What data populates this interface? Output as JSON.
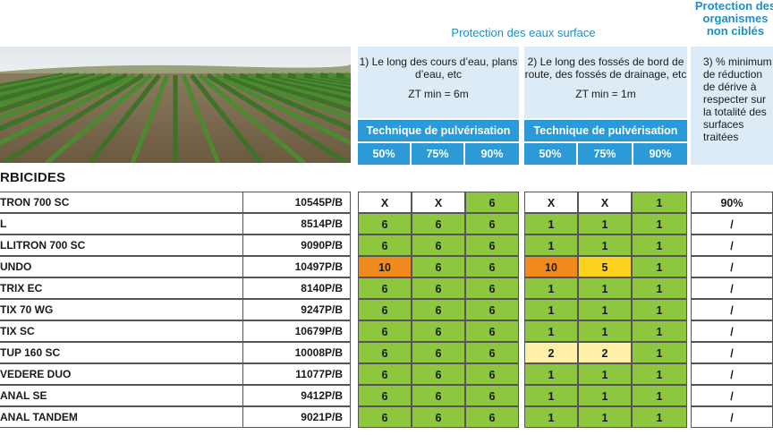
{
  "colors": {
    "header_blue": "#2b9ad6",
    "header_light": "#dcebf6",
    "title_blue": "#1f8fc9",
    "green": "#8dc63f",
    "orange": "#f08a1c",
    "yellow": "#ffd21f",
    "pale_yellow": "#fff2a8"
  },
  "headers": {
    "eaux_title": "Protection des eaux surface",
    "orga_title": "Protection des organismes non ciblés",
    "col1": {
      "text": "1) Le long des cours d’eau, plans d’eau, etc",
      "zt": "ZT min = 6m",
      "tech": "Technique de pulvérisation"
    },
    "col2": {
      "text": "2) Le long des fossés de bord de route, des fossés de drainage, etc",
      "zt": "ZT min = 1m",
      "tech": "Technique de pulvérisation"
    },
    "col3": {
      "text": "3) % minimum de réduction de dérive à respecter sur la totalité des surfaces traitées"
    },
    "percents": [
      "50%",
      "75%",
      "90%",
      "50%",
      "75%",
      "90%"
    ]
  },
  "section_title": "RBICIDES",
  "rows": [
    {
      "name": "TRON 700 SC",
      "amm": "10545P/B",
      "c1": [
        "X",
        "X",
        "6"
      ],
      "c2": [
        "X",
        "X",
        "1"
      ],
      "orga": "90%"
    },
    {
      "name": "L",
      "amm": "8514P/B",
      "c1": [
        "6",
        "6",
        "6"
      ],
      "c2": [
        "1",
        "1",
        "1"
      ],
      "orga": "/"
    },
    {
      "name": "LLITRON 700 SC",
      "amm": "9090P/B",
      "c1": [
        "6",
        "6",
        "6"
      ],
      "c2": [
        "1",
        "1",
        "1"
      ],
      "orga": "/"
    },
    {
      "name": "UNDO",
      "amm": "10497P/B",
      "c1": [
        "10",
        "6",
        "6"
      ],
      "c2": [
        "10",
        "5",
        "1"
      ],
      "orga": "/"
    },
    {
      "name": "TRIX EC",
      "amm": "8140P/B",
      "c1": [
        "6",
        "6",
        "6"
      ],
      "c2": [
        "1",
        "1",
        "1"
      ],
      "orga": "/"
    },
    {
      "name": "TIX 70 WG",
      "amm": "9247P/B",
      "c1": [
        "6",
        "6",
        "6"
      ],
      "c2": [
        "1",
        "1",
        "1"
      ],
      "orga": "/"
    },
    {
      "name": "TIX SC",
      "amm": "10679P/B",
      "c1": [
        "6",
        "6",
        "6"
      ],
      "c2": [
        "1",
        "1",
        "1"
      ],
      "orga": "/"
    },
    {
      "name": "TUP 160 SC",
      "amm": "10008P/B",
      "c1": [
        "6",
        "6",
        "6"
      ],
      "c2": [
        "2",
        "2",
        "1"
      ],
      "orga": "/"
    },
    {
      "name": "VEDERE DUO",
      "amm": "11077P/B",
      "c1": [
        "6",
        "6",
        "6"
      ],
      "c2": [
        "1",
        "1",
        "1"
      ],
      "orga": "/"
    },
    {
      "name": "ANAL SE",
      "amm": "9412P/B",
      "c1": [
        "6",
        "6",
        "6"
      ],
      "c2": [
        "1",
        "1",
        "1"
      ],
      "orga": "/"
    },
    {
      "name": "ANAL TANDEM",
      "amm": "9021P/B",
      "c1": [
        "6",
        "6",
        "6"
      ],
      "c2": [
        "1",
        "1",
        "1"
      ],
      "orga": "/"
    }
  ]
}
